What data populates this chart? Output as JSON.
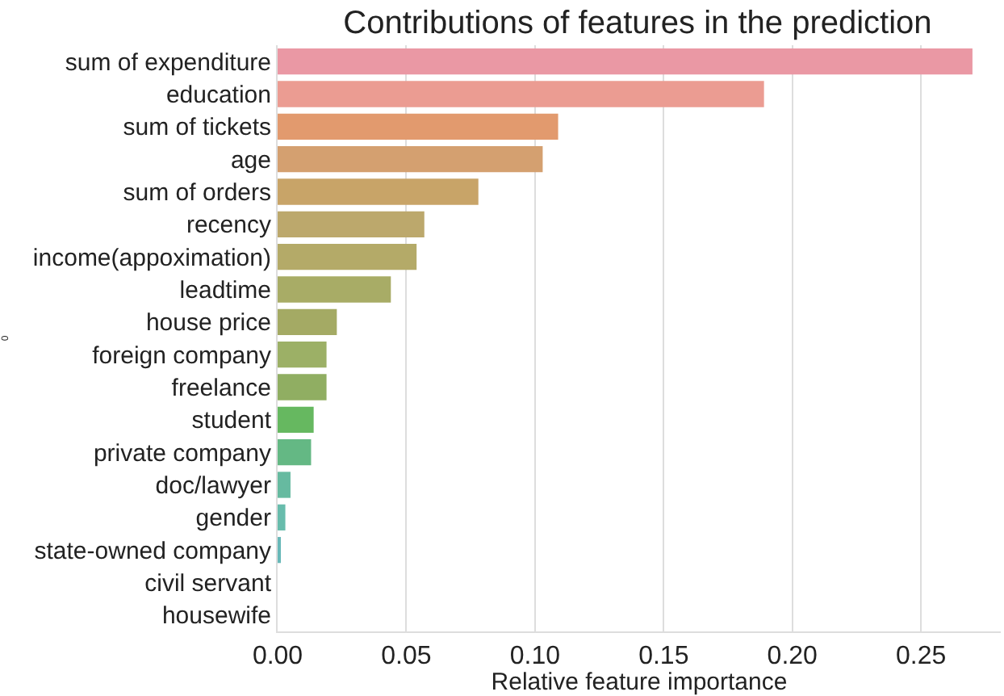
{
  "chart_data": {
    "type": "bar",
    "orientation": "horizontal",
    "title": "Contributions of features in the prediction",
    "xlabel": "Relative feature importance",
    "ylabel": "0",
    "categories": [
      "sum of expenditure",
      "education",
      "sum of tickets",
      "age",
      "sum of orders",
      "recency",
      "income(appoximation)",
      "leadtime",
      "house price",
      "foreign company",
      "freelance",
      "student",
      "private company",
      "doc/lawyer",
      "gender",
      "state-owned company",
      "civil servant",
      "housewife"
    ],
    "values": [
      0.27,
      0.189,
      0.109,
      0.103,
      0.078,
      0.057,
      0.054,
      0.044,
      0.023,
      0.019,
      0.019,
      0.014,
      0.013,
      0.005,
      0.003,
      0.001,
      0,
      0
    ],
    "colors": [
      "#ea98a4",
      "#eb9c92",
      "#e29a6e",
      "#d4a070",
      "#c8a468",
      "#bca86c",
      "#b4aa68",
      "#a8ac66",
      "#a4aa64",
      "#9cb066",
      "#90ae62",
      "#66b860",
      "#64b884",
      "#66baa0",
      "#68bcac",
      "#68b8b8",
      "#6ab4bc",
      "#70b0c0"
    ],
    "xlim": [
      0,
      0.281
    ],
    "xticks": [
      {
        "value": 0,
        "label": "0.00"
      },
      {
        "value": 0.05,
        "label": "0.05"
      },
      {
        "value": 0.1,
        "label": "0.10"
      },
      {
        "value": 0.15,
        "label": "0.15"
      },
      {
        "value": 0.2,
        "label": "0.20"
      },
      {
        "value": 0.25,
        "label": "0.25"
      }
    ],
    "grid": "x"
  }
}
